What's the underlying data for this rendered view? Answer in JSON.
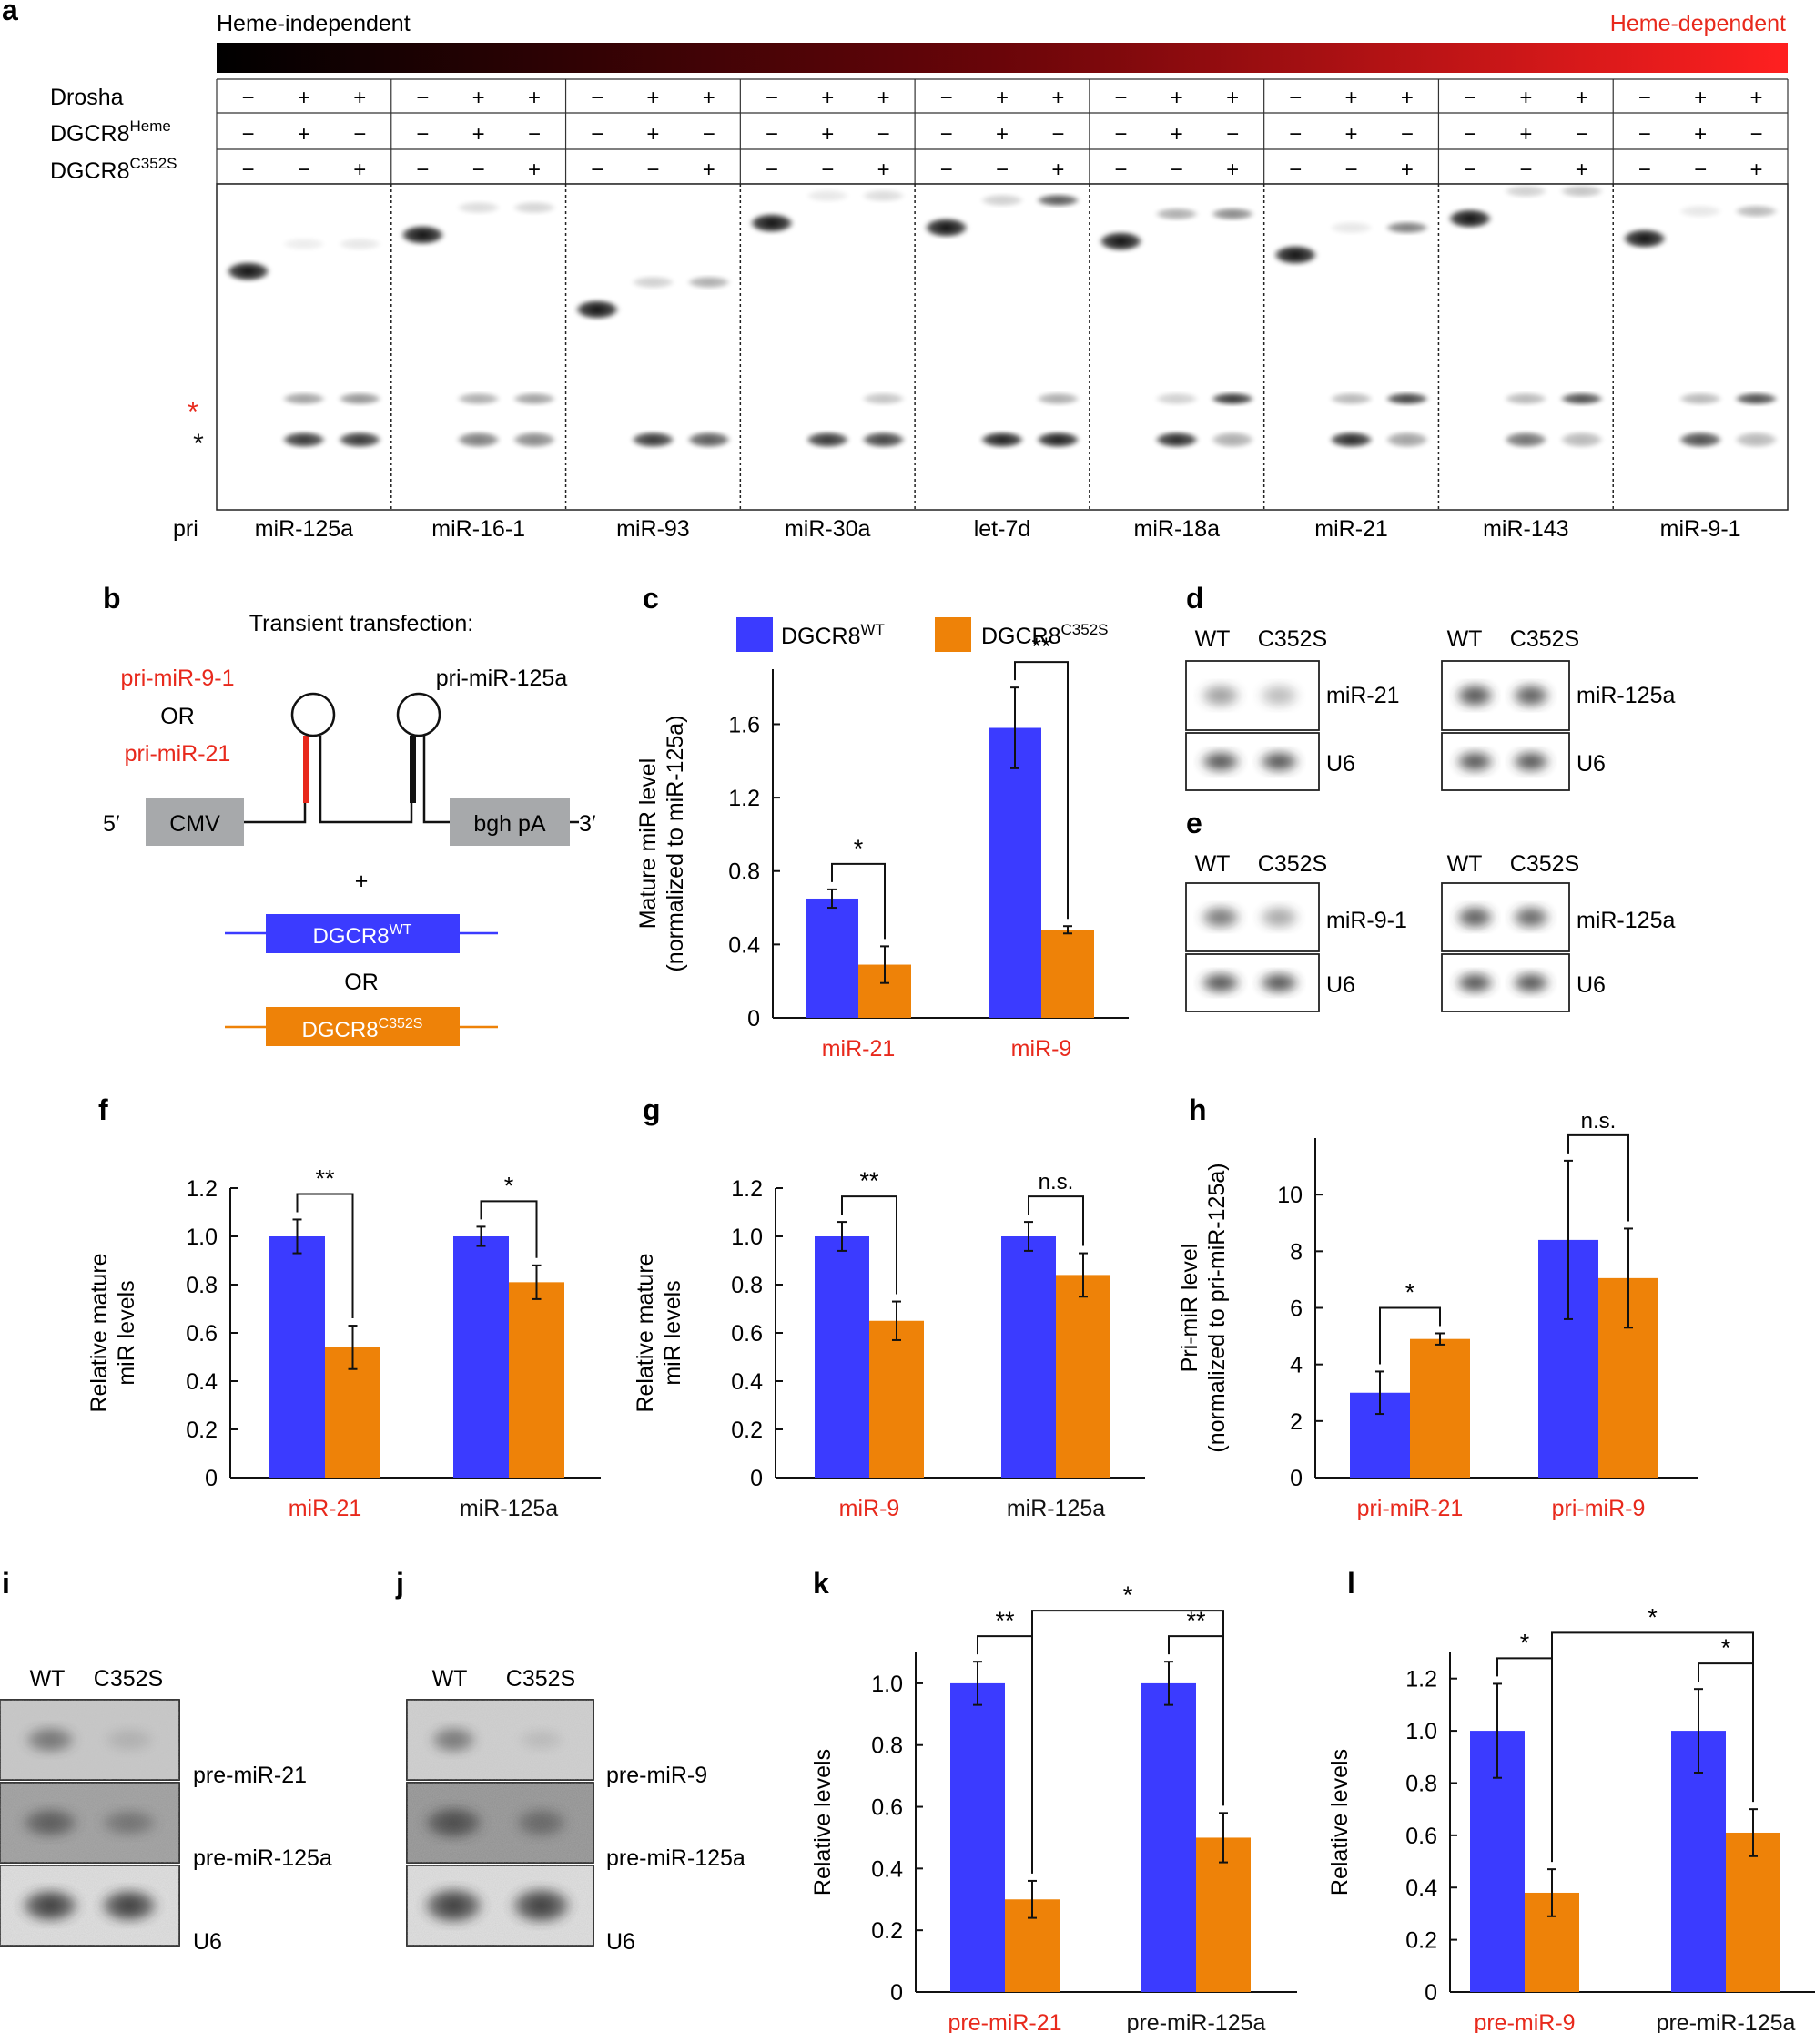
{
  "panels": {
    "a": "a",
    "b": "b",
    "c": "c",
    "d": "d",
    "e": "e",
    "f": "f",
    "g": "g",
    "h": "h",
    "i": "i",
    "j": "j",
    "k": "k",
    "l": "l"
  },
  "colors": {
    "wt": "#3b3bff",
    "mut": "#ee8208",
    "red": "#e8291c",
    "black": "#111111"
  },
  "panel_a": {
    "gradient_left": "Heme-independent",
    "gradient_right": "Heme-dependent",
    "row_labels": [
      {
        "base": "Drosha",
        "sup": ""
      },
      {
        "base": "DGCR8",
        "sup": "Heme"
      },
      {
        "base": "DGCR8",
        "sup": "C352S"
      }
    ],
    "signs": [
      [
        "−",
        "+",
        "+"
      ],
      [
        "−",
        "+",
        "−"
      ],
      [
        "−",
        "−",
        "+"
      ]
    ],
    "pri_label": "pri",
    "lanes": [
      "miR-125a",
      "miR-16-1",
      "miR-93",
      "miR-30a",
      "let-7d",
      "miR-18a",
      "miR-21",
      "miR-143",
      "miR-9-1"
    ],
    "star_red": "*",
    "star_black": "*"
  },
  "panel_b": {
    "title": "Transient transfection:",
    "pri1": "pri-miR-9-1",
    "or1": "OR",
    "pri2": "pri-miR-21",
    "pri3": "pri-miR-125a",
    "five": "5′",
    "three": "3′",
    "cmv": "CMV",
    "bgh": "bgh pA",
    "plus": "+",
    "wt_base": "DGCR8",
    "wt_sup": "WT",
    "or2": "OR",
    "mut_base": "DGCR8",
    "mut_sup": "C352S"
  },
  "legend": {
    "wt_base": "DGCR8",
    "wt_sup": "WT",
    "mut_base": "DGCR8",
    "mut_sup": "C352S"
  },
  "blots_de": {
    "wt": "WT",
    "mut": "C352S",
    "u6": "U6",
    "d_left": "miR-21",
    "d_right": "miR-125a",
    "e_left": "miR-9-1",
    "e_right": "miR-125a"
  },
  "blots_ij": {
    "wt": "WT",
    "mut": "C352S",
    "i_labels": [
      "pre-miR-21",
      "pre-miR-125a",
      "U6"
    ],
    "j_labels": [
      "pre-miR-9",
      "pre-miR-125a",
      "U6"
    ]
  },
  "chart_data": [
    {
      "panel": "c",
      "type": "bar",
      "ylabel": [
        "Mature miR level",
        "(normalized to miR-125a)"
      ],
      "ylim": [
        0,
        1.9
      ],
      "yticks": [
        0,
        0.4,
        0.8,
        1.2,
        1.6
      ],
      "ytick_labels": [
        "0",
        "0.4",
        "0.8",
        "1.2",
        "1.6"
      ],
      "categories": [
        "miR-21",
        "miR-9"
      ],
      "category_colors": [
        "red",
        "red"
      ],
      "series": [
        {
          "name": "DGCR8 WT",
          "values": [
            0.65,
            1.58
          ],
          "errors": [
            0.05,
            0.22
          ]
        },
        {
          "name": "DGCR8 C352S",
          "values": [
            0.29,
            0.48
          ],
          "errors": [
            0.1,
            0.02
          ]
        }
      ],
      "sig": [
        {
          "type": "pair",
          "cat": 0,
          "label": "*"
        },
        {
          "type": "pair",
          "cat": 1,
          "label": "**"
        }
      ]
    },
    {
      "panel": "f",
      "type": "bar",
      "ylabel": [
        "Relative mature",
        "miR levels"
      ],
      "ylim": [
        0,
        1.2
      ],
      "yticks": [
        0,
        0.2,
        0.4,
        0.6,
        0.8,
        1.0,
        1.2
      ],
      "ytick_labels": [
        "0",
        "0.2",
        "0.4",
        "0.6",
        "0.8",
        "1.0",
        "1.2"
      ],
      "categories": [
        "miR-21",
        "miR-125a"
      ],
      "category_colors": [
        "red",
        "black"
      ],
      "series": [
        {
          "name": "DGCR8 WT",
          "values": [
            1.0,
            1.0
          ],
          "errors": [
            0.07,
            0.04
          ]
        },
        {
          "name": "DGCR8 C352S",
          "values": [
            0.54,
            0.81
          ],
          "errors": [
            0.09,
            0.07
          ]
        }
      ],
      "sig": [
        {
          "type": "pair",
          "cat": 0,
          "label": "**"
        },
        {
          "type": "pair",
          "cat": 1,
          "label": "*"
        }
      ]
    },
    {
      "panel": "g",
      "type": "bar",
      "ylabel": [
        "Relative mature",
        "miR levels"
      ],
      "ylim": [
        0,
        1.2
      ],
      "yticks": [
        0,
        0.2,
        0.4,
        0.6,
        0.8,
        1.0,
        1.2
      ],
      "ytick_labels": [
        "0",
        "0.2",
        "0.4",
        "0.6",
        "0.8",
        "1.0",
        "1.2"
      ],
      "categories": [
        "miR-9",
        "miR-125a"
      ],
      "category_colors": [
        "red",
        "black"
      ],
      "series": [
        {
          "name": "DGCR8 WT",
          "values": [
            1.0,
            1.0
          ],
          "errors": [
            0.06,
            0.06
          ]
        },
        {
          "name": "DGCR8 C352S",
          "values": [
            0.65,
            0.84
          ],
          "errors": [
            0.08,
            0.09
          ]
        }
      ],
      "sig": [
        {
          "type": "pair",
          "cat": 0,
          "label": "**"
        },
        {
          "type": "pair",
          "cat": 1,
          "label": "n.s."
        }
      ]
    },
    {
      "panel": "h",
      "type": "bar",
      "ylabel": [
        "Pri-miR level",
        "(normalized to pri-miR-125a)"
      ],
      "ylim": [
        0,
        12
      ],
      "yticks": [
        0,
        2,
        4,
        6,
        8,
        10
      ],
      "ytick_labels": [
        "0",
        "2",
        "4",
        "6",
        "8",
        "10"
      ],
      "categories": [
        "pri-miR-21",
        "pri-miR-9"
      ],
      "category_colors": [
        "red",
        "red"
      ],
      "series": [
        {
          "name": "DGCR8 WT",
          "values": [
            3.0,
            8.4
          ],
          "errors": [
            0.75,
            2.8
          ]
        },
        {
          "name": "DGCR8 C352S",
          "values": [
            4.9,
            7.05
          ],
          "errors": [
            0.2,
            1.75
          ]
        }
      ],
      "sig": [
        {
          "type": "pair",
          "cat": 0,
          "label": "*"
        },
        {
          "type": "pair",
          "cat": 1,
          "label": "n.s."
        }
      ]
    },
    {
      "panel": "k",
      "type": "bar",
      "ylabel": [
        "Relative levels"
      ],
      "ylim": [
        0,
        1.1
      ],
      "yticks": [
        0,
        0.2,
        0.4,
        0.6,
        0.8,
        1.0
      ],
      "ytick_labels": [
        "0",
        "0.2",
        "0.4",
        "0.6",
        "0.8",
        "1.0"
      ],
      "categories": [
        "pre-miR-21",
        "pre-miR-125a"
      ],
      "category_colors": [
        "red",
        "black"
      ],
      "series": [
        {
          "name": "DGCR8 WT",
          "values": [
            1.0,
            1.0
          ],
          "errors": [
            0.07,
            0.07
          ]
        },
        {
          "name": "DGCR8 C352S",
          "values": [
            0.3,
            0.5
          ],
          "errors": [
            0.06,
            0.08
          ]
        }
      ],
      "sig": [
        {
          "type": "pair",
          "cat": 0,
          "label": "**"
        },
        {
          "type": "pair",
          "cat": 1,
          "label": "**"
        },
        {
          "type": "cross",
          "label": "*"
        }
      ]
    },
    {
      "panel": "l",
      "type": "bar",
      "ylabel": [
        "Relative levels"
      ],
      "ylim": [
        0,
        1.3
      ],
      "yticks": [
        0,
        0.2,
        0.4,
        0.6,
        0.8,
        1.0,
        1.2
      ],
      "ytick_labels": [
        "0",
        "0.2",
        "0.4",
        "0.6",
        "0.8",
        "1.0",
        "1.2"
      ],
      "categories": [
        "pre-miR-9",
        "pre-miR-125a"
      ],
      "category_colors": [
        "red",
        "black"
      ],
      "series": [
        {
          "name": "DGCR8 WT",
          "values": [
            1.0,
            1.0
          ],
          "errors": [
            0.18,
            0.16
          ]
        },
        {
          "name": "DGCR8 C352S",
          "values": [
            0.38,
            0.61
          ],
          "errors": [
            0.09,
            0.09
          ]
        }
      ],
      "sig": [
        {
          "type": "pair",
          "cat": 0,
          "label": "*"
        },
        {
          "type": "pair",
          "cat": 1,
          "label": "*"
        },
        {
          "type": "cross",
          "label": "*"
        }
      ]
    }
  ]
}
